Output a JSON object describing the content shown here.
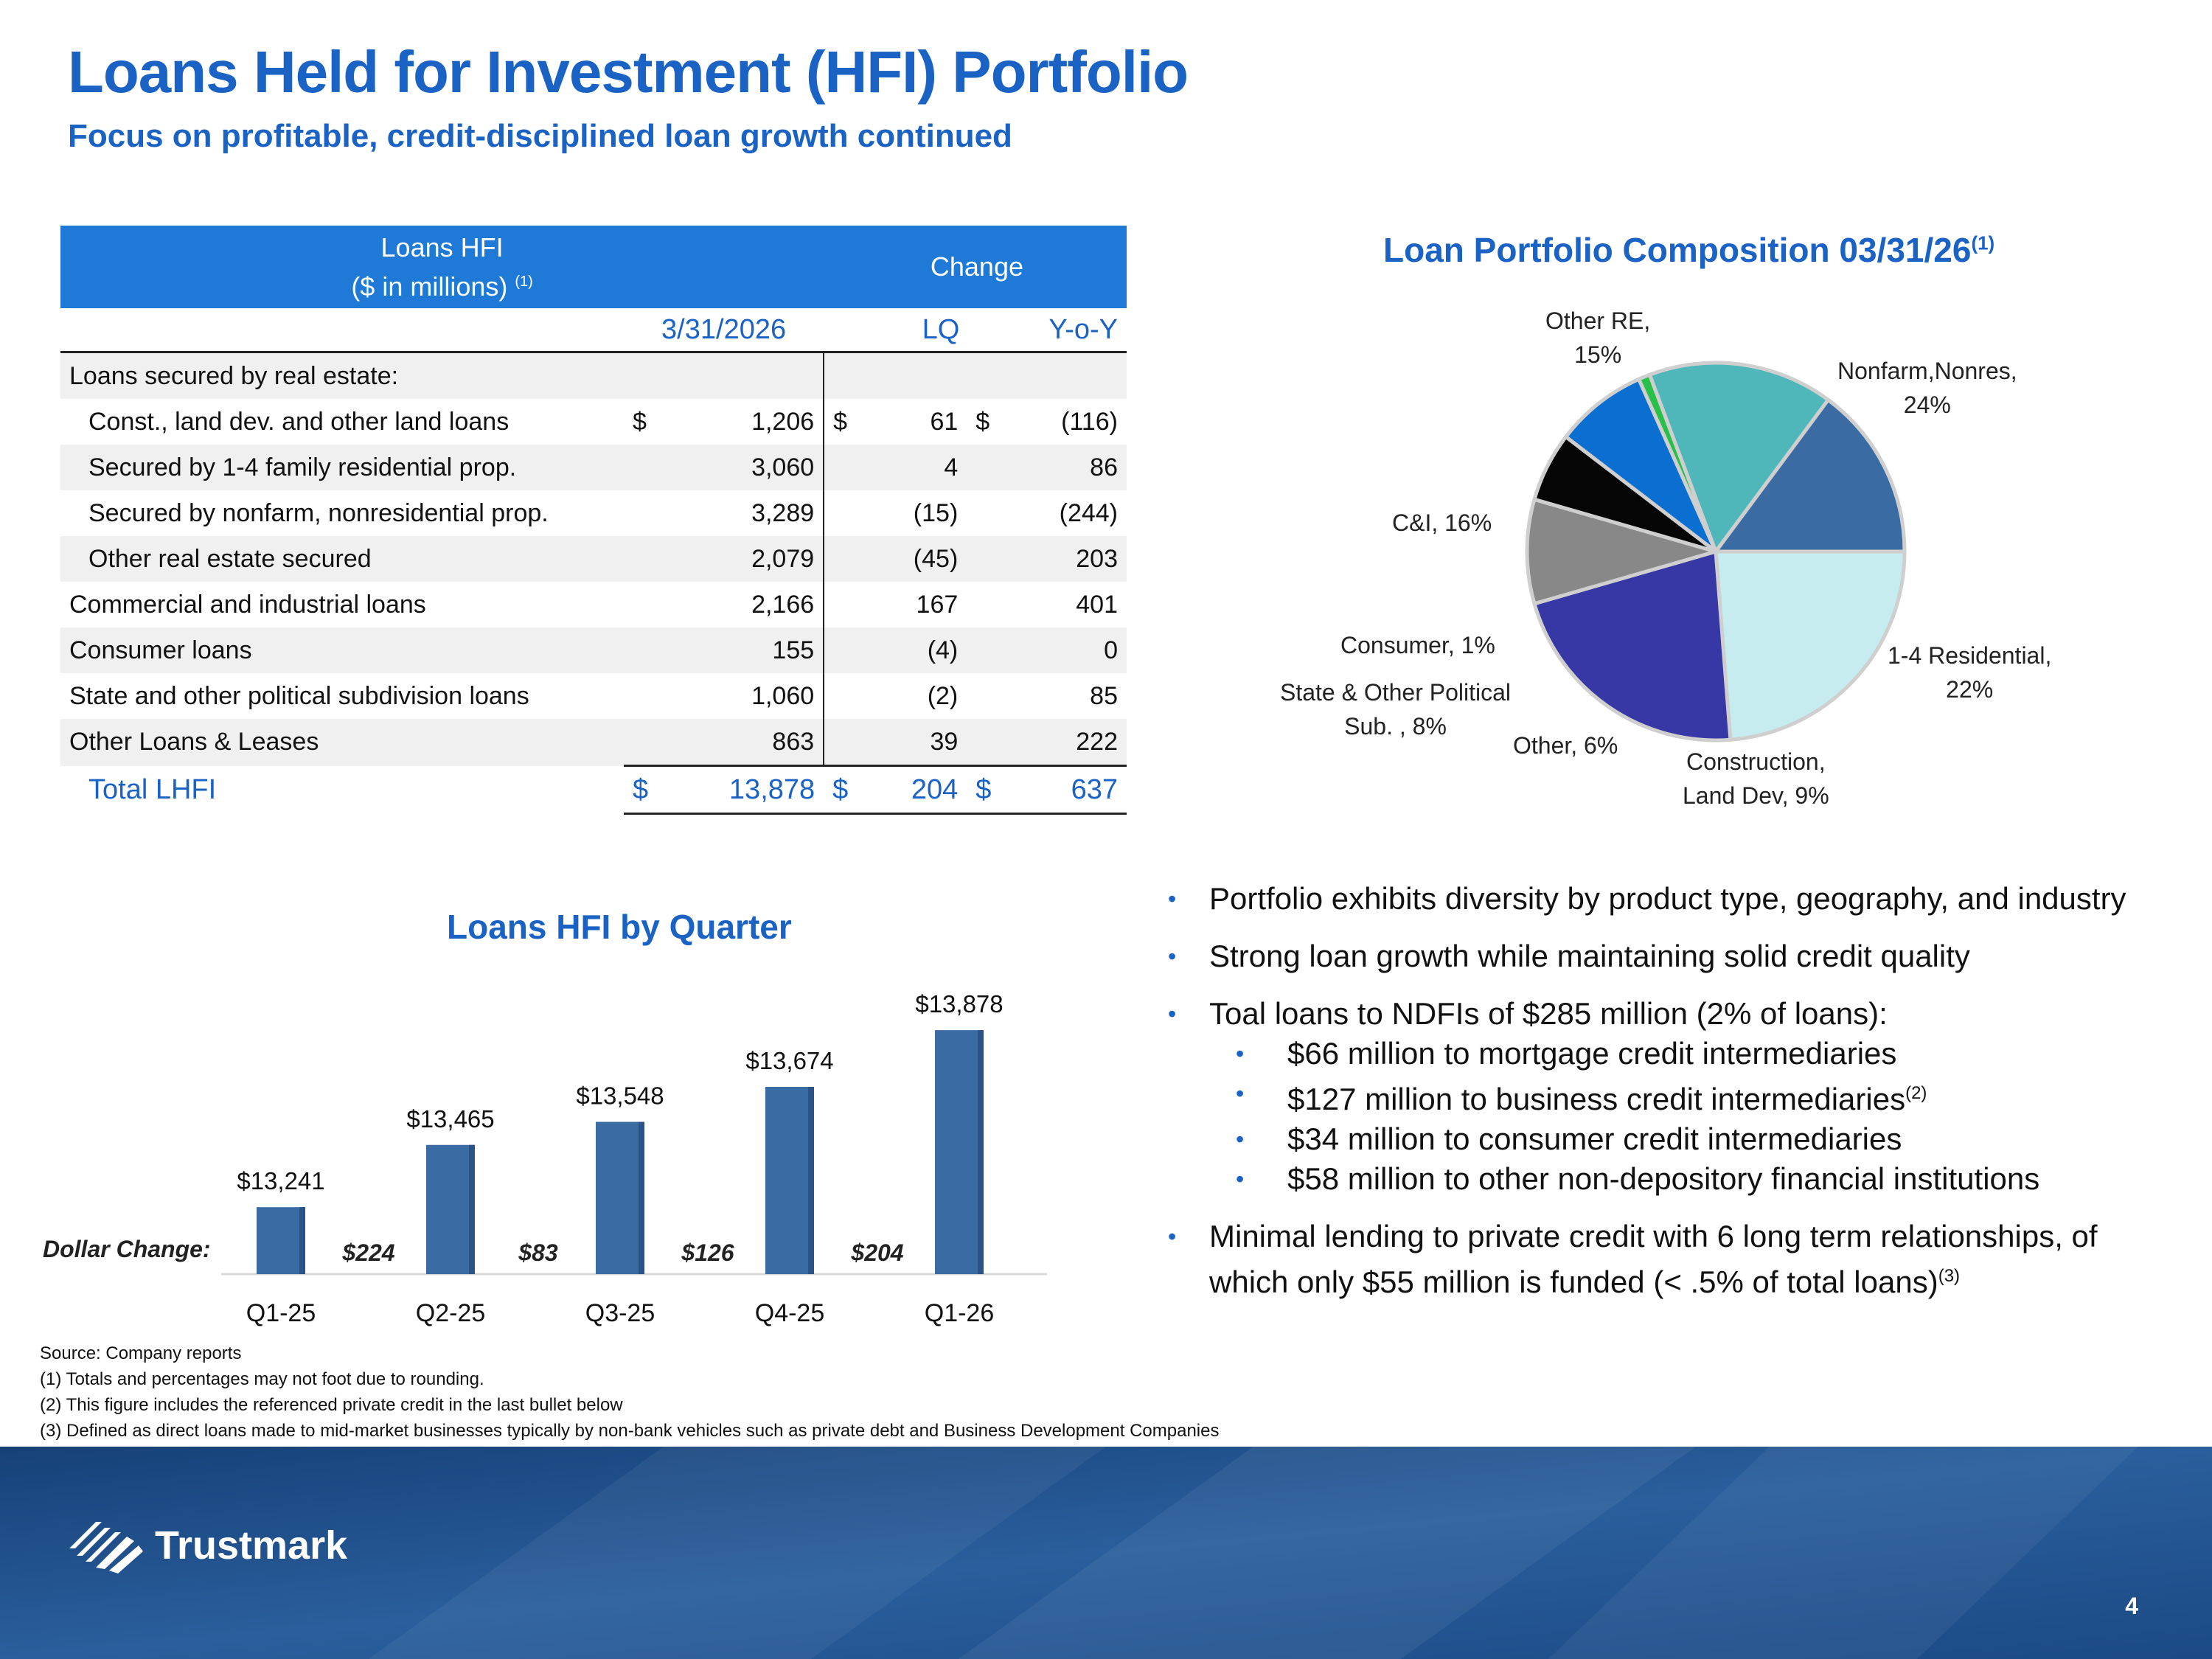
{
  "header": {
    "title": "Loans Held for Investment (HFI) Portfolio",
    "subtitle": "Focus on profitable, credit-disciplined loan growth continued"
  },
  "table": {
    "header_left_line1": "Loans HFI",
    "header_left_line2": "($ in millions)",
    "header_left_note": "(1)",
    "header_change": "Change",
    "col_date": "3/31/2026",
    "col_lq": "LQ",
    "col_yoy": "Y-o-Y",
    "section_label": "Loans secured by real estate:",
    "rows": [
      {
        "label": "Const., land dev. and other land loans",
        "s1": "$",
        "value": "1,206",
        "s2": "$",
        "lq": "61",
        "s3": "$",
        "yoy": "(116)"
      },
      {
        "label": "Secured by 1-4 family residential prop.",
        "value": "3,060",
        "lq": "4",
        "yoy": "86"
      },
      {
        "label": "Secured by nonfarm, nonresidential prop.",
        "value": "3,289",
        "lq": "(15)",
        "yoy": "(244)"
      },
      {
        "label": "Other real estate secured",
        "value": "2,079",
        "lq": "(45)",
        "yoy": "203"
      },
      {
        "label": "Commercial and industrial loans",
        "value": "2,166",
        "lq": "167",
        "yoy": "401"
      },
      {
        "label": "Consumer loans",
        "value": "155",
        "lq": "(4)",
        "yoy": "0"
      },
      {
        "label": "State and other political subdivision loans",
        "value": "1,060",
        "lq": "(2)",
        "yoy": "85"
      },
      {
        "label": "Other Loans & Leases",
        "value": "863",
        "lq": "39",
        "yoy": "222"
      }
    ],
    "total": {
      "label": "Total LHFI",
      "s1": "$",
      "value": "13,878",
      "s2": "$",
      "lq": "204",
      "s3": "$",
      "yoy": "637"
    }
  },
  "pie": {
    "title": "Loan Portfolio Composition 03/31/26",
    "title_note": "(1)",
    "labels": {
      "other_re_1": "Other RE,",
      "other_re_2": "15%",
      "nonfarm_1": "Nonfarm,Nonres,",
      "nonfarm_2": "24%",
      "ci": "C&I, 16%",
      "consumer": "Consumer, 1%",
      "residential_1": "1-4 Residential,",
      "residential_2": "22%",
      "state_1": "State & Other Political",
      "state_2": "Sub. , 8%",
      "other": "Other, 6%",
      "construction_1": "Construction,",
      "construction_2": "Land Dev, 9%"
    }
  },
  "chart_data": {
    "type": "pie",
    "title": "Loan Portfolio Composition 03/31/26",
    "slices": [
      {
        "name": "Nonfarm,Nonres",
        "value": 24,
        "color": "#c6ecf0"
      },
      {
        "name": "1-4 Residential",
        "value": 22,
        "color": "#3737a5"
      },
      {
        "name": "Construction, Land Dev",
        "value": 9,
        "color": "#888888"
      },
      {
        "name": "Other",
        "value": 6,
        "color": "#050505"
      },
      {
        "name": "State & Other Political Sub.",
        "value": 8,
        "color": "#0a6fd0"
      },
      {
        "name": "Consumer",
        "value": 1,
        "color": "#28c04a"
      },
      {
        "name": "C&I",
        "value": 16,
        "color": "#4fb7ba"
      },
      {
        "name": "Other RE",
        "value": 15,
        "color": "#3a6ca3"
      }
    ]
  },
  "bar_chart": {
    "type": "bar",
    "title": "Loans HFI by Quarter",
    "categories": [
      "Q1-25",
      "Q2-25",
      "Q3-25",
      "Q4-25",
      "Q1-26"
    ],
    "values": [
      13241,
      13465,
      13548,
      13674,
      13878
    ],
    "value_labels": [
      "$13,241",
      "$13,465",
      "$13,548",
      "$13,674",
      "$13,878"
    ],
    "dollar_change_label": "Dollar Change:",
    "changes": [
      "$224",
      "$83",
      "$126",
      "$204"
    ],
    "ylim": [
      13000,
      13950
    ],
    "color": "#3a6ca3"
  },
  "bullets": [
    {
      "text": "Portfolio exhibits diversity by product type, geography, and industry"
    },
    {
      "text": "Strong loan growth while maintaining solid credit quality"
    },
    {
      "text": "Toal loans to NDFIs of $285 million (2% of loans):",
      "sub": [
        {
          "text": "$66 million to mortgage credit intermediaries",
          "note": ""
        },
        {
          "text": "$127 million to business credit intermediaries",
          "note": "(2)"
        },
        {
          "text": "$34 million to consumer credit intermediaries",
          "note": ""
        },
        {
          "text": "$58 million to other non-depository financial institutions",
          "note": ""
        }
      ]
    },
    {
      "text": "Minimal lending to private credit with 6 long term relationships, of which only $55 million is funded (< .5% of total loans)",
      "note": "(3)"
    }
  ],
  "footnotes": [
    "Source: Company reports",
    "(1) Totals and percentages may not foot due to rounding.",
    "(2) This figure includes the referenced private credit in the last bullet below",
    "(3) Defined as direct loans made to mid-market businesses typically by non-bank vehicles such as private debt and Business Development Companies"
  ],
  "footer": {
    "logo_text": "Trustmark",
    "page_number": "4"
  }
}
